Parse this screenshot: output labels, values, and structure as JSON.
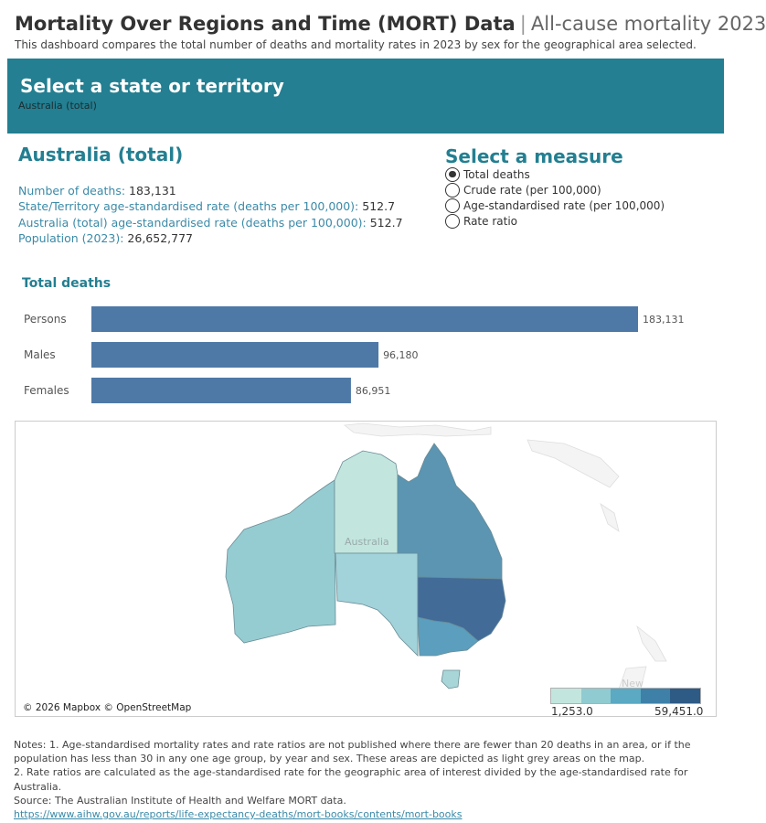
{
  "header": {
    "title": "Mortality Over Regions and Time (MORT) Data",
    "separator": "|",
    "subtitle": "All-cause mortality 2023",
    "description": "This dashboard compares the total number of deaths and mortality rates in 2023 by sex for the geographical area selected."
  },
  "banner": {
    "title": "Select a state or territory",
    "selected": "Australia (total)",
    "color": "#237f91"
  },
  "region": {
    "title": "Australia (total)",
    "stats": [
      {
        "label": "Number of deaths:",
        "value": "183,131"
      },
      {
        "label": "State/Territory age-standardised rate (deaths per 100,000):",
        "value": "512.7"
      },
      {
        "label": "Australia (total) age-standardised rate (deaths per 100,000):",
        "value": "512.7"
      },
      {
        "label": "Population (2023):",
        "value": "26,652,777"
      }
    ]
  },
  "measure": {
    "title": "Select a measure",
    "options": [
      {
        "label": "Total deaths",
        "selected": true
      },
      {
        "label": "Crude rate (per 100,000)",
        "selected": false
      },
      {
        "label": "Age-standardised rate (per 100,000)",
        "selected": false
      },
      {
        "label": "Rate ratio",
        "selected": false
      }
    ]
  },
  "chart_data": {
    "type": "bar",
    "orientation": "horizontal",
    "title": "Total deaths",
    "categories": [
      "Persons",
      "Males",
      "Females"
    ],
    "values": [
      183131,
      96180,
      86951
    ],
    "value_labels": [
      "183,131",
      "96,180",
      "86,951"
    ],
    "color": "#4e79a7"
  },
  "map": {
    "credit": "© 2026 Mapbox © OpenStreetMap",
    "label": "Australia",
    "legend": {
      "title": "New",
      "min": "1,253.0",
      "max": "59,451.0",
      "colors": [
        "#c2e6de",
        "#8fcbd0",
        "#5ba9c3",
        "#3e80a8",
        "#2e5a86"
      ]
    },
    "region_colors": {
      "WA": "#95ccd2",
      "NT": "#c2e6de",
      "SA": "#a2d2da",
      "QLD": "#5b95b2",
      "NSW": "#426b98",
      "VIC": "#5b9ebd",
      "TAS": "#a8d6d8",
      "ACT": "#c2e6de"
    }
  },
  "notes": {
    "line1": "Notes: 1. Age-standardised mortality rates and rate ratios are not published where there are fewer than 20 deaths in an area, or if the population has less than 30 in any one age group, by year and sex. These areas are depicted as light grey areas on the map.",
    "line2": "2. Rate ratios are calculated as the age-standardised rate for the geographic area of interest divided by the age-standardised rate for Australia.",
    "line3": "Source: The Australian Institute of Health and Welfare MORT data.",
    "link": "https://www.aihw.gov.au/reports/life-expectancy-deaths/mort-books/contents/mort-books"
  }
}
